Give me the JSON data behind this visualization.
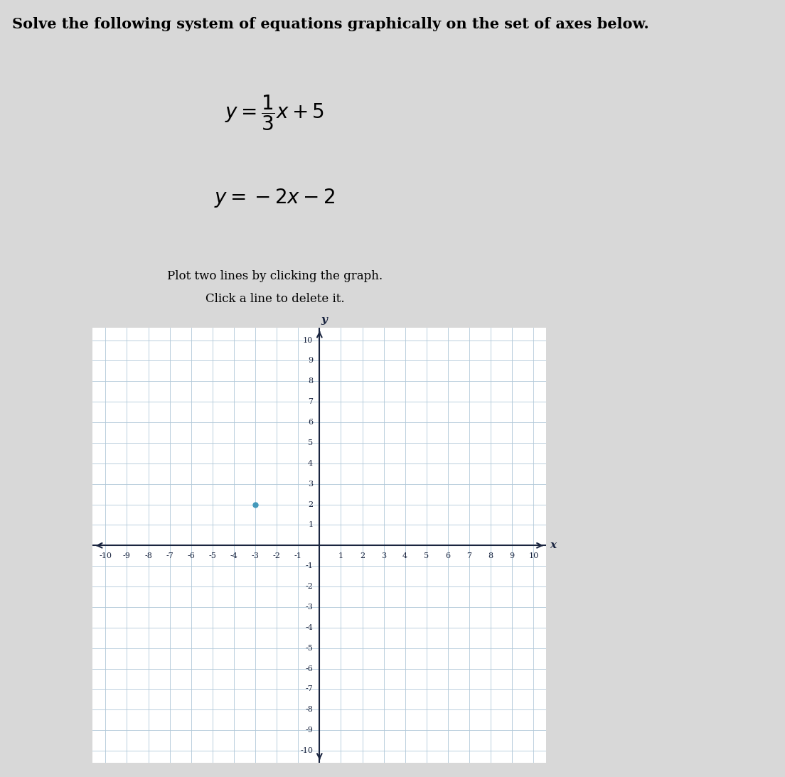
{
  "title_text": "Solve the following system of equations graphically on the set of axes below.",
  "xlim": [
    -10,
    10
  ],
  "ylim": [
    -10,
    10
  ],
  "xticks": [
    -10,
    -9,
    -8,
    -7,
    -6,
    -5,
    -4,
    -3,
    -2,
    -1,
    0,
    1,
    2,
    3,
    4,
    5,
    6,
    7,
    8,
    9,
    10
  ],
  "yticks": [
    -10,
    -9,
    -8,
    -7,
    -6,
    -5,
    -4,
    -3,
    -2,
    -1,
    0,
    1,
    2,
    3,
    4,
    5,
    6,
    7,
    8,
    9,
    10
  ],
  "bg_color": "#d8d8d8",
  "grid_color": "#b0c8d8",
  "axis_color": "#1a2540",
  "dot_x": -3,
  "dot_y": 2,
  "dot_color": "#4499bb",
  "title_fontsize": 15,
  "eq_fontsize": 20,
  "inst_fontsize": 12,
  "tick_fontsize": 8
}
